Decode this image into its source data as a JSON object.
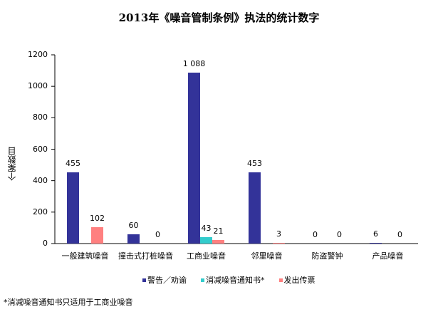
{
  "chart_data": {
    "type": "bar",
    "title": "2013年《噪音管制条例》执法的统计数字",
    "xlabel": "",
    "ylabel": "个案数目",
    "ylim": [
      0,
      1200
    ],
    "yticks": [
      0,
      200,
      400,
      600,
      800,
      1000,
      1200
    ],
    "grid": false,
    "legend_position": "bottom",
    "categories": [
      "一般建筑噪音",
      "撞击式打桩噪音",
      "工商业噪音",
      "邻里噪音",
      "防盗警钟",
      "产品噪音"
    ],
    "series": [
      {
        "name": "警告／劝谕",
        "color": "#333399",
        "values": [
          455,
          60,
          1088,
          453,
          0,
          6
        ]
      },
      {
        "name": "消减噪音通知书*",
        "color": "#33CCCC",
        "values": [
          null,
          null,
          43,
          null,
          null,
          null
        ]
      },
      {
        "name": "发出传票",
        "color": "#FF8080",
        "values": [
          102,
          0,
          21,
          3,
          0,
          0
        ]
      }
    ],
    "data_labels": [
      [
        "455",
        "102"
      ],
      [
        "60",
        "0"
      ],
      [
        "1 088",
        "43",
        "21"
      ],
      [
        "453",
        "3"
      ],
      [
        "0",
        "0"
      ],
      [
        "6",
        "0"
      ]
    ],
    "footnote": "*消减噪音通知书只适用于工商业噪音"
  }
}
